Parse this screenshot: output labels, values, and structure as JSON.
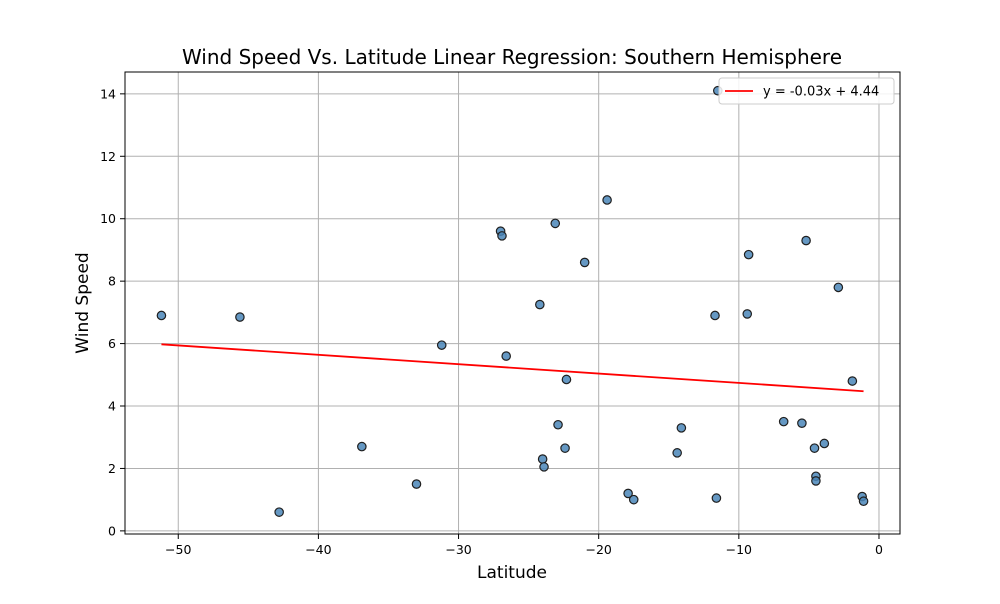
{
  "chart_data": {
    "type": "scatter",
    "title": "Wind Speed Vs. Latitude Linear Regression: Southern Hemisphere",
    "xlabel": "Latitude",
    "ylabel": "Wind Speed",
    "xlim": [
      -53.8,
      1.5
    ],
    "ylim": [
      -0.1,
      14.7
    ],
    "xticks": [
      -50,
      -40,
      -30,
      -20,
      -10,
      0
    ],
    "yticks": [
      0,
      2,
      4,
      6,
      8,
      10,
      12,
      14
    ],
    "grid": true,
    "legend_position": "top-right",
    "colors": {
      "points": "#4a86b8",
      "regression": "#ff0000"
    },
    "series": [
      {
        "kind": "points",
        "x": [
          -51.2,
          -45.6,
          -42.8,
          -36.9,
          -33.0,
          -31.2,
          -27.0,
          -26.9,
          -26.6,
          -24.2,
          -24.0,
          -23.9,
          -23.1,
          -22.9,
          -22.4,
          -22.3,
          -21.0,
          -19.4,
          -17.9,
          -17.5,
          -14.4,
          -14.1,
          -11.7,
          -11.6,
          -11.5,
          -9.4,
          -9.3,
          -6.8,
          -5.5,
          -5.2,
          -4.6,
          -4.5,
          -4.5,
          -3.9,
          -2.9,
          -1.9,
          -1.2,
          -1.1
        ],
        "y": [
          6.9,
          6.85,
          0.6,
          2.7,
          1.5,
          5.95,
          9.6,
          9.45,
          5.6,
          7.25,
          2.3,
          2.05,
          9.85,
          3.4,
          2.65,
          4.85,
          8.6,
          10.6,
          1.2,
          1.0,
          2.5,
          3.3,
          6.9,
          1.05,
          14.1,
          6.95,
          8.85,
          3.5,
          3.45,
          9.3,
          2.65,
          1.75,
          1.6,
          2.8,
          7.8,
          4.8,
          1.1,
          0.95
        ]
      },
      {
        "kind": "line",
        "name": "y = -0.03x + 4.44",
        "slope": -0.03,
        "intercept": 4.44,
        "x_range": [
          -51.2,
          -1.1
        ]
      }
    ]
  }
}
